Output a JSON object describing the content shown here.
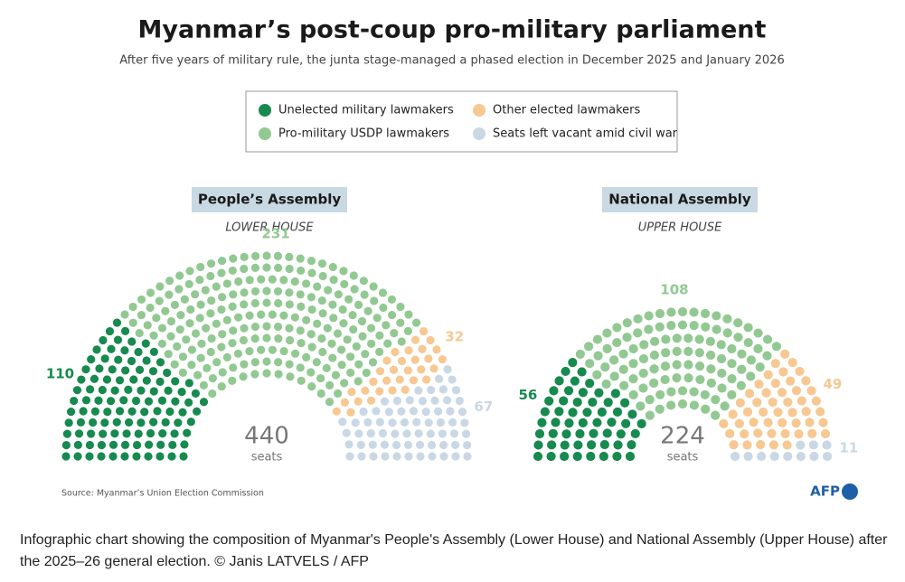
{
  "header": {
    "title": "Myanmar’s post-coup pro-military parliament",
    "subtitle": "After five years of military rule, the junta stage-managed a phased election in December 2025 and January 2026"
  },
  "chart_data": [
    {
      "type": "parliament",
      "title": "People’s Assembly",
      "subtitle": "LOWER HOUSE",
      "total": 440,
      "total_label": "seats",
      "series": [
        {
          "name": "Unelected military lawmakers",
          "color": "#178a4f",
          "values": [
            110
          ]
        },
        {
          "name": "Pro-military USDP lawmakers",
          "color": "#92c992",
          "values": [
            231
          ]
        },
        {
          "name": "Other elected lawmakers",
          "color": "#f7c892",
          "values": [
            32
          ]
        },
        {
          "name": "Seats left vacant amid civil war",
          "color": "#c9d8e4",
          "values": [
            67
          ]
        }
      ]
    },
    {
      "type": "parliament",
      "title": "National Assembly",
      "subtitle": "UPPER HOUSE",
      "total": 224,
      "total_label": "seats",
      "series": [
        {
          "color": "#178a4f",
          "values": [
            56
          ]
        },
        {
          "color": "#92c992",
          "values": [
            108
          ]
        },
        {
          "color": "#f7c892",
          "values": [
            49
          ]
        },
        {
          "color": "#c9d8e4",
          "values": [
            11
          ]
        }
      ]
    }
  ],
  "footer": {
    "source": "Source: Myanmar’s Union Election Commission",
    "logo": "AFP"
  },
  "caption": "Infographic chart showing the composition of Myanmar's People's Assembly (Lower House) and National Assembly (Upper House) after the 2025–26 general election. © Janis LATVELS / AFP"
}
